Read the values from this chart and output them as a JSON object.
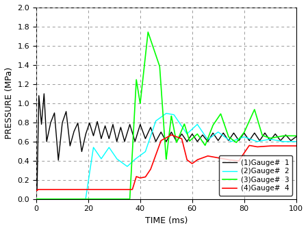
{
  "title": "",
  "xlabel": "TIME (ms)",
  "ylabel": "PRESSURE (MPa)",
  "xlim": [
    0,
    100
  ],
  "ylim": [
    0.0,
    2.0
  ],
  "xticks": [
    0,
    20,
    40,
    60,
    80,
    100
  ],
  "yticks": [
    0.0,
    0.2,
    0.4,
    0.6,
    0.8,
    1.0,
    1.2,
    1.4,
    1.6,
    1.8,
    2.0
  ],
  "legend": [
    "(1)Gauge#  1",
    "(2)Gauge#  2",
    "(3)Gauge#  3",
    "(4)Gauge#  4"
  ],
  "colors": [
    "black",
    "cyan",
    "lime",
    "red"
  ],
  "linewidths": [
    1.0,
    1.0,
    1.2,
    1.2
  ],
  "background": "#ffffff",
  "grid_color": "#999999",
  "figsize": [
    4.5,
    3.36
  ],
  "dpi": 100
}
